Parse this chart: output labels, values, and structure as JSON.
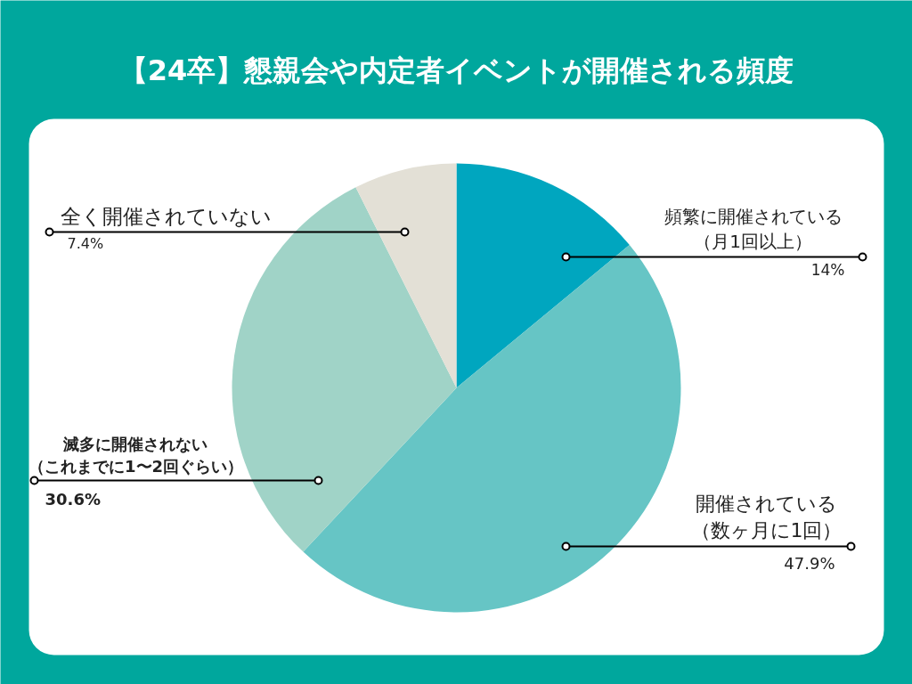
{
  "chart_data": {
    "type": "pie",
    "title": "【24卒】懇親会や内定者イベントが開催される頻度",
    "categories": [
      "頻繁に開催されている（月1回以上）",
      "開催されている（数ヶ月に1回）",
      "滅多に開催されない（これまでに1〜2回ぐらい）",
      "全く開催されていない"
    ],
    "values": [
      14,
      47.9,
      30.6,
      7.4
    ],
    "colors": [
      "#00a6bf",
      "#66c5c5",
      "#a0d3c7",
      "#e3e0d6"
    ],
    "value_labels": [
      "14%",
      "47.9%",
      "30.6%",
      "7.4%"
    ],
    "legend": false
  }
}
